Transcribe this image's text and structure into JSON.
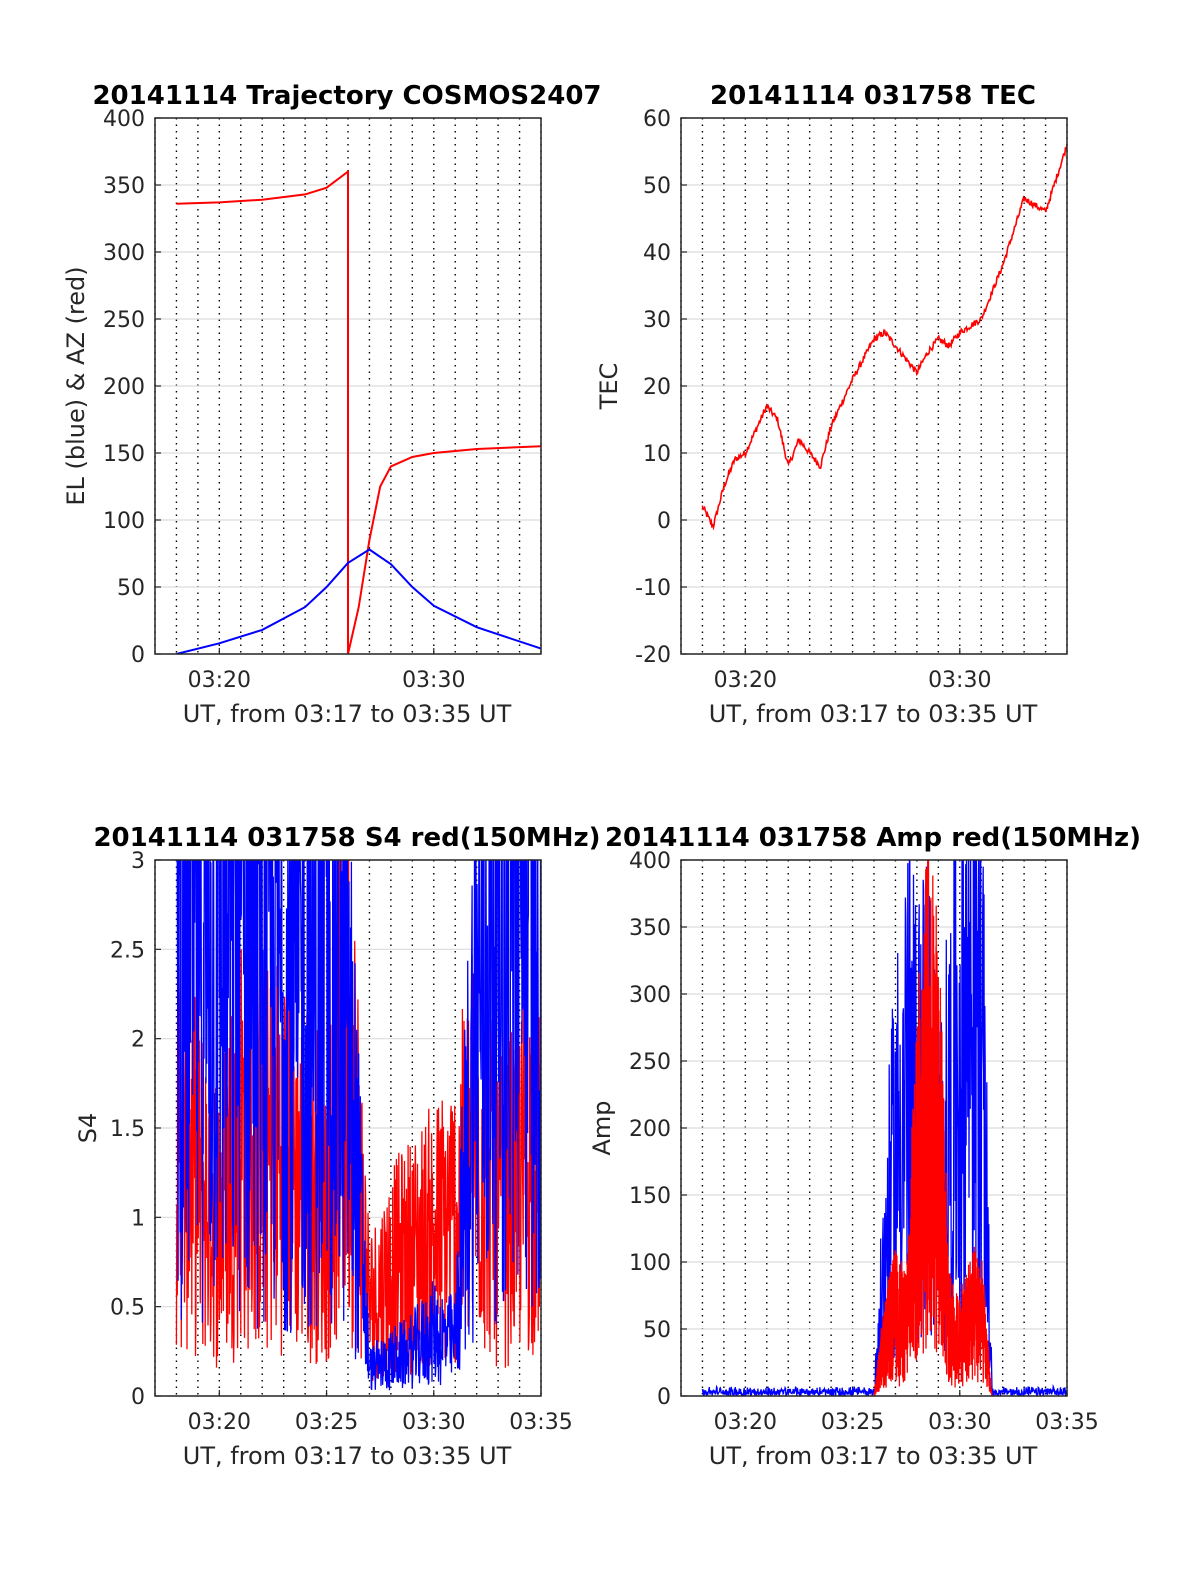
{
  "chart_data": [
    {
      "type": "line",
      "title": "20141114 Trajectory COSMOS2407",
      "xlabel": "UT, from 03:17 to 03:35 UT",
      "ylabel": "EL (blue) & AZ (red)",
      "xlim": [
        "03:17",
        "03:35"
      ],
      "ylim": [
        0,
        400
      ],
      "xticks": [
        "03:20",
        "03:30"
      ],
      "yticks": [
        0,
        50,
        100,
        150,
        200,
        250,
        300,
        350,
        400
      ],
      "grid": true,
      "series": [
        {
          "color": "#ff0000",
          "x": [
            "03:18",
            "03:20",
            "03:22",
            "03:24",
            "03:25",
            "03:26",
            "03:26",
            "03:26.5",
            "03:27",
            "03:27.5",
            "03:28",
            "03:29",
            "03:30",
            "03:32",
            "03:35"
          ],
          "y": [
            336,
            337,
            339,
            343,
            348,
            360,
            0,
            35,
            85,
            125,
            140,
            147,
            150,
            153,
            155
          ]
        },
        {
          "color": "#0000ff",
          "x": [
            "03:18",
            "03:20",
            "03:22",
            "03:24",
            "03:25",
            "03:26",
            "03:27",
            "03:28",
            "03:29",
            "03:30",
            "03:32",
            "03:35"
          ],
          "y": [
            0,
            8,
            18,
            35,
            50,
            68,
            78,
            67,
            50,
            36,
            20,
            4
          ]
        }
      ]
    },
    {
      "type": "line",
      "title": "20141114 031758 TEC",
      "xlabel": "UT, from 03:17 to 03:35 UT",
      "ylabel": "TEC",
      "xlim": [
        "03:17",
        "03:35"
      ],
      "ylim": [
        -20,
        60
      ],
      "xticks": [
        "03:20",
        "03:30"
      ],
      "yticks": [
        -20,
        -10,
        0,
        10,
        20,
        30,
        40,
        50,
        60
      ],
      "grid": true,
      "series": [
        {
          "color": "#ff0000",
          "x": [
            "03:18",
            "03:18.5",
            "03:19",
            "03:19.5",
            "03:20",
            "03:21",
            "03:21.5",
            "03:22",
            "03:22.5",
            "03:23",
            "03:23.5",
            "03:24",
            "03:25",
            "03:26",
            "03:26.5",
            "03:27",
            "03:28",
            "03:28.5",
            "03:29",
            "03:29.5",
            "03:30",
            "03:30.5",
            "03:31",
            "03:32",
            "03:33",
            "03:34",
            "03:35"
          ],
          "y": [
            2,
            -1,
            5,
            9,
            10,
            17,
            15,
            8,
            12,
            10,
            8,
            14,
            21,
            27,
            28,
            26,
            22,
            25,
            27,
            26,
            28,
            29,
            30,
            38,
            48,
            46,
            56
          ]
        }
      ]
    },
    {
      "type": "line",
      "title": "20141114 031758 S4 red(150MHz)",
      "xlabel": "UT, from 03:17 to 03:35 UT",
      "ylabel": "S4",
      "xlim": [
        "03:17",
        "03:35"
      ],
      "ylim": [
        0,
        3
      ],
      "xticks": [
        "03:20",
        "03:25",
        "03:30",
        "03:35"
      ],
      "yticks": [
        0,
        0.5,
        1,
        1.5,
        2,
        2.5,
        3
      ],
      "grid": true,
      "series": [
        {
          "color": "#ff0000",
          "x": [
            "03:18",
            "03:19",
            "03:20",
            "03:21",
            "03:22",
            "03:23",
            "03:24",
            "03:25",
            "03:26",
            "03:27",
            "03:28",
            "03:29",
            "03:30",
            "03:31",
            "03:32",
            "03:33",
            "03:34",
            "03:35"
          ],
          "y": [
            1.5,
            1.2,
            1.0,
            1.5,
            1.3,
            1.4,
            1.2,
            1.1,
            2.0,
            0.5,
            0.7,
            0.8,
            0.9,
            1.0,
            1.5,
            1.0,
            1.2,
            1.4
          ]
        },
        {
          "color": "#0000ff",
          "x": [
            "03:18",
            "03:19",
            "03:20",
            "03:21",
            "03:22",
            "03:23",
            "03:24",
            "03:25",
            "03:26",
            "03:27",
            "03:28",
            "03:29",
            "03:30",
            "03:31",
            "03:32",
            "03:33",
            "03:34",
            "03:35"
          ],
          "y": [
            2.8,
            2.6,
            2.5,
            2.6,
            2.4,
            2.3,
            2.2,
            2.3,
            2.0,
            0.15,
            0.2,
            0.25,
            0.35,
            0.3,
            2.2,
            2.7,
            2.8,
            2.9
          ]
        }
      ]
    },
    {
      "type": "line",
      "title": "20141114 031758 Amp red(150MHz)",
      "xlabel": "UT, from 03:17 to 03:35 UT",
      "ylabel": "Amp",
      "xlim": [
        "03:17",
        "03:35"
      ],
      "ylim": [
        0,
        400
      ],
      "xticks": [
        "03:20",
        "03:25",
        "03:30",
        "03:35"
      ],
      "yticks": [
        0,
        50,
        100,
        150,
        200,
        250,
        300,
        350,
        400
      ],
      "grid": true,
      "series": [
        {
          "color": "#0000ff",
          "x": [
            "03:18",
            "03:20",
            "03:22",
            "03:24",
            "03:26",
            "03:26.5",
            "03:27",
            "03:27.5",
            "03:28",
            "03:28.5",
            "03:29",
            "03:29.5",
            "03:30",
            "03:30.5",
            "03:31",
            "03:31.5",
            "03:33",
            "03:35"
          ],
          "y": [
            3,
            3,
            3,
            3,
            3,
            100,
            180,
            240,
            200,
            240,
            150,
            200,
            250,
            300,
            270,
            3,
            3,
            3
          ]
        },
        {
          "color": "#ff0000",
          "x": [
            "03:26",
            "03:26.5",
            "03:27",
            "03:27.5",
            "03:28",
            "03:28.5",
            "03:29",
            "03:29.5",
            "03:30",
            "03:30.5",
            "03:31",
            "03:31.5"
          ],
          "y": [
            0,
            40,
            60,
            50,
            160,
            230,
            200,
            50,
            40,
            60,
            60,
            0
          ]
        }
      ]
    }
  ]
}
